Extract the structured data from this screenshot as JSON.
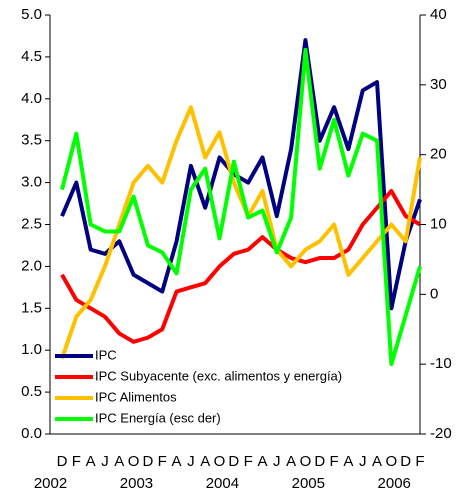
{
  "chart_data": {
    "type": "line",
    "categories": [
      "D",
      "F",
      "A",
      "J",
      "A",
      "O",
      "D",
      "F",
      "A",
      "J",
      "A",
      "O",
      "D",
      "F",
      "A",
      "J",
      "A",
      "O",
      "D",
      "F",
      "A",
      "J",
      "A",
      "O",
      "D",
      "F"
    ],
    "year_labels": [
      "2002",
      "2003",
      "2004",
      "2005",
      "2006"
    ],
    "series": [
      {
        "name": "IPC",
        "color": "#000080",
        "values": [
          2.6,
          3.0,
          2.2,
          2.15,
          2.3,
          1.9,
          1.8,
          1.7,
          2.3,
          3.2,
          2.7,
          3.3,
          3.1,
          3.0,
          3.3,
          2.6,
          3.4,
          4.7,
          3.5,
          3.9,
          3.4,
          4.1,
          4.2,
          1.5,
          2.3,
          2.8
        ]
      },
      {
        "name": "IPC Subyacente (exc. alimentos y energía)",
        "color": "#ff0000",
        "values": [
          1.9,
          1.6,
          1.5,
          1.4,
          1.2,
          1.1,
          1.15,
          1.25,
          1.7,
          1.75,
          1.8,
          2.0,
          2.15,
          2.2,
          2.35,
          2.2,
          2.1,
          2.05,
          2.1,
          2.1,
          2.2,
          2.5,
          2.7,
          2.9,
          2.6,
          2.5
        ]
      },
      {
        "name": "IPC Alimentos",
        "color": "#ffc000",
        "values": [
          0.9,
          1.4,
          1.6,
          2.0,
          2.5,
          3.0,
          3.2,
          3.0,
          3.5,
          3.9,
          3.3,
          3.6,
          3.0,
          2.6,
          2.9,
          2.2,
          2.0,
          2.2,
          2.3,
          2.5,
          1.9,
          2.1,
          2.3,
          2.5,
          2.3,
          3.3
        ]
      },
      {
        "name": "IPC Energía (esc der)",
        "color": "#00ff00",
        "axis": "y2",
        "values": [
          15,
          23,
          10,
          9,
          9,
          14,
          7,
          6,
          3,
          15,
          18,
          8,
          19,
          11,
          12,
          6,
          11,
          35,
          18,
          25,
          17,
          23,
          22,
          -10,
          -3,
          4
        ]
      }
    ],
    "ylim": [
      0,
      5
    ],
    "yticks": [
      {
        "value": 0,
        "label": "0.0"
      },
      {
        "value": 0.5,
        "label": "0.5"
      },
      {
        "value": 1,
        "label": "1.0"
      },
      {
        "value": 1.5,
        "label": "1.5"
      },
      {
        "value": 2,
        "label": "2.0"
      },
      {
        "value": 2.5,
        "label": "2.5"
      },
      {
        "value": 3,
        "label": "3.0"
      },
      {
        "value": 3.5,
        "label": "3.5"
      },
      {
        "value": 4,
        "label": "4.0"
      },
      {
        "value": 4.5,
        "label": "4.5"
      },
      {
        "value": 5,
        "label": "5.0"
      }
    ],
    "y2lim": [
      -20,
      40
    ],
    "y2ticks": [
      -20,
      -10,
      0,
      10,
      20,
      30,
      40
    ],
    "legend": "lower left",
    "grid": false
  }
}
